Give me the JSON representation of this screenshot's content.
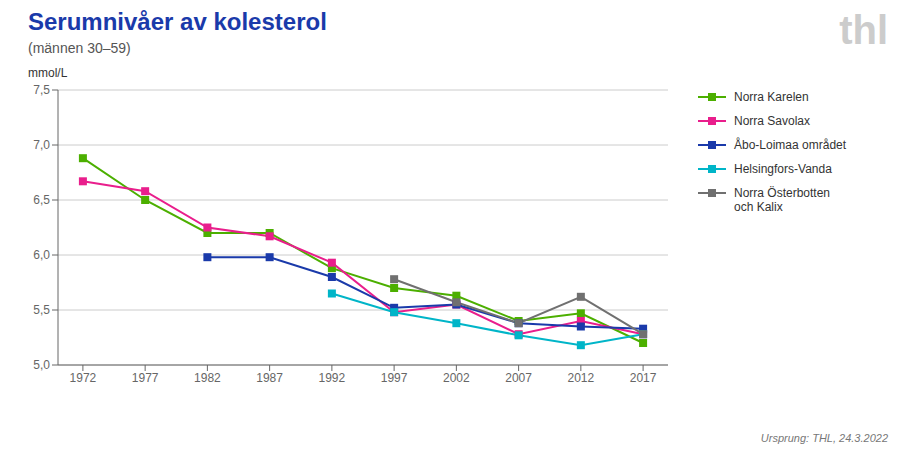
{
  "chart_data": {
    "type": "line",
    "title": "Serumnivåer av kolesterol",
    "subtitle": "(männen 30–59)",
    "ylabel": "mmol/L",
    "annotations": [
      "Ursprung: THL, 24.3.2022",
      "thl"
    ],
    "x": [
      1972,
      1977,
      1982,
      1987,
      1992,
      1997,
      2002,
      2007,
      2012,
      2017
    ],
    "xlim": [
      1970,
      2019
    ],
    "xticks": [
      1972,
      1977,
      1982,
      1987,
      1992,
      1997,
      2002,
      2007,
      2012,
      2017
    ],
    "ylim": [
      5.0,
      7.5
    ],
    "yticks": [
      {
        "value": 5.0,
        "label": "5,0"
      },
      {
        "value": 5.5,
        "label": "5,5"
      },
      {
        "value": 6.0,
        "label": "6,0"
      },
      {
        "value": 6.5,
        "label": "6,5"
      },
      {
        "value": 7.0,
        "label": "7,0"
      },
      {
        "value": 7.5,
        "label": "7,5"
      }
    ],
    "grid": true,
    "legend": "right",
    "marker": "square",
    "series": [
      {
        "name": "Norra Karelen",
        "color": "#4caf00",
        "values": [
          6.88,
          6.5,
          6.2,
          6.2,
          5.88,
          5.7,
          5.63,
          5.4,
          5.47,
          5.2
        ]
      },
      {
        "name": "Norra Savolax",
        "color": "#e91e8c",
        "values": [
          6.67,
          6.58,
          6.25,
          6.17,
          5.93,
          5.48,
          5.55,
          5.28,
          5.4,
          5.28
        ]
      },
      {
        "name": "Åbo-Loimaa området",
        "color": "#1a3aaa",
        "values": [
          null,
          null,
          5.98,
          5.98,
          5.8,
          5.52,
          5.55,
          5.38,
          5.35,
          5.33
        ]
      },
      {
        "name": "Helsingfors-Vanda",
        "color": "#00b5c8",
        "values": [
          null,
          null,
          null,
          null,
          5.65,
          5.48,
          5.38,
          5.27,
          5.18,
          5.28
        ]
      },
      {
        "name": "Norra Österbotten\noch Kalix",
        "color": "#707070",
        "values": [
          null,
          null,
          null,
          null,
          null,
          5.78,
          5.57,
          5.38,
          5.62,
          5.28
        ]
      }
    ]
  }
}
